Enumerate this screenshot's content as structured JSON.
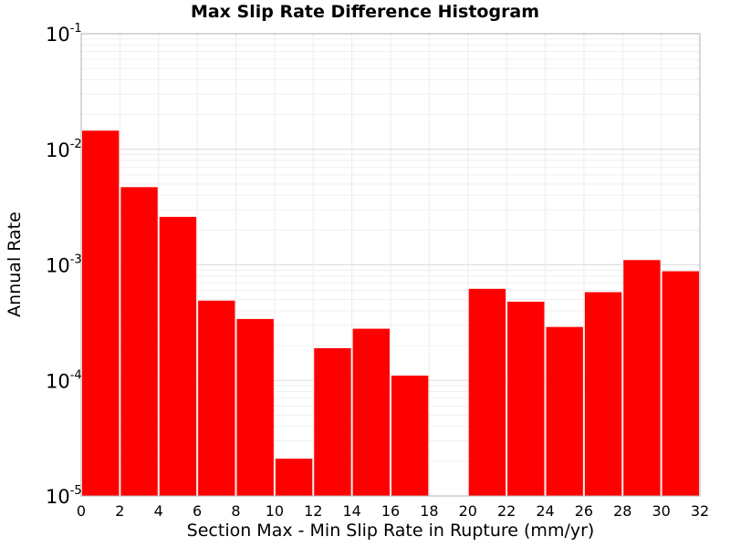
{
  "chart_data": {
    "type": "bar",
    "title": "Max Slip Rate Difference Histogram",
    "xlabel": "Section Max - Min Slip Rate in Rupture (mm/yr)",
    "ylabel": "Annual Rate",
    "y_scale": "log",
    "ylim": [
      1e-05,
      0.1
    ],
    "xlim": [
      0,
      32
    ],
    "grid": true,
    "legend": "none",
    "bar_color": "#ff0000",
    "bar_width": 2,
    "x_ticks": [
      "0",
      "2",
      "4",
      "6",
      "8",
      "10",
      "12",
      "14",
      "16",
      "18",
      "20",
      "22",
      "24",
      "26",
      "28",
      "30",
      "32"
    ],
    "y_ticks": [
      {
        "base": "10",
        "exp": "-5",
        "value": 1e-05
      },
      {
        "base": "10",
        "exp": "-4",
        "value": 0.0001
      },
      {
        "base": "10",
        "exp": "-3",
        "value": 0.001
      },
      {
        "base": "10",
        "exp": "-2",
        "value": 0.01
      },
      {
        "base": "10",
        "exp": "-1",
        "value": 0.1
      }
    ],
    "x": [
      1,
      3,
      5,
      7,
      9,
      11,
      13,
      15,
      17,
      19,
      21,
      23,
      25,
      27,
      29,
      31
    ],
    "values": [
      0.0145,
      0.0047,
      0.0026,
      0.00049,
      0.00034,
      2.1e-05,
      0.00019,
      0.00028,
      0.00011,
      0,
      0.00062,
      0.00048,
      0.00029,
      0.00058,
      0.0011,
      0.00088
    ]
  }
}
